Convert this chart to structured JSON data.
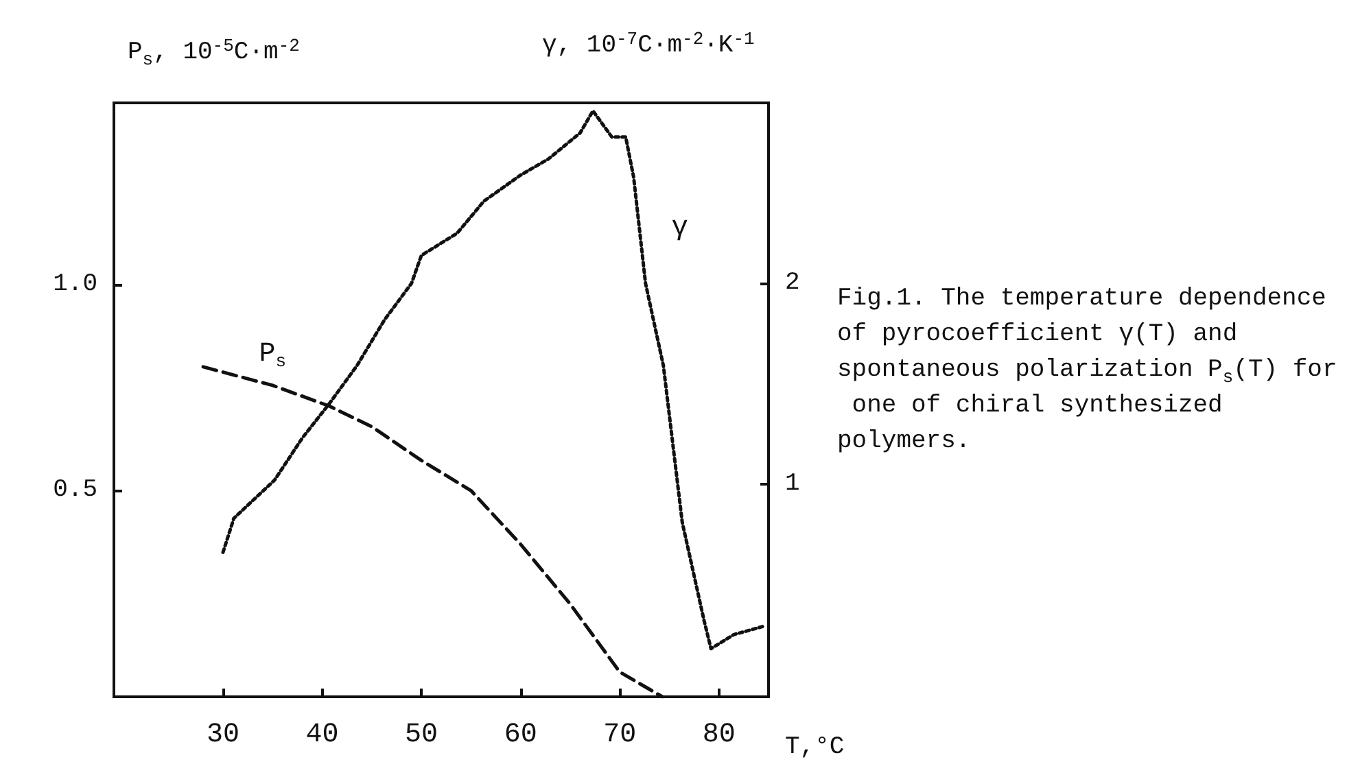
{
  "chart_data": {
    "type": "line",
    "ylabel": "P$_{s}$, 10$^{-5}$C·m$^{-2}$",
    "y2label": "γ, 10$^{-7}$C·m$^{-2}$·K$^{-1}$",
    "xlabel": "T,°C",
    "xlim": [
      19,
      85
    ],
    "xticks": [
      30,
      40,
      50,
      60,
      70,
      80
    ],
    "ylim": [
      0,
      1.44
    ],
    "yticks": [
      0.5,
      {
        "value": 1,
        "label": "1.0"
      }
    ],
    "y2lim": [
      -0.06,
      2.9
    ],
    "y2ticks": [
      1,
      2
    ],
    "grid": false,
    "marker": "none",
    "series": [
      {
        "name": "P$_{s}$",
        "color": "#111111",
        "line_style": "dashed",
        "x": [
          28,
          35,
          40.7,
          45,
          50,
          55,
          60,
          65,
          70,
          74.3
        ],
        "values": [
          0.8,
          0.755,
          0.705,
          0.655,
          0.573,
          0.5,
          0.37,
          0.225,
          0.06,
          0
        ]
      },
      {
        "name": "γ",
        "color": "#111111",
        "line_style": "dotted",
        "axis": "y2",
        "x": [
          30,
          31.1,
          35.2,
          38,
          40.7,
          43.5,
          46.3,
          49,
          50,
          53.6,
          56.3,
          60,
          62.8,
          66,
          67.3,
          69.2,
          70.6,
          71.4,
          72.6,
          74.4,
          76.3,
          78.5,
          79.2,
          81.5,
          84.4
        ],
        "values": [
          0.66,
          0.83,
          1.02,
          1.23,
          1.4,
          1.59,
          1.82,
          2.0,
          2.14,
          2.25,
          2.41,
          2.54,
          2.62,
          2.75,
          2.86,
          2.73,
          2.73,
          2.53,
          2.0,
          1.59,
          0.81,
          0.32,
          0.18,
          0.25,
          0.29
        ]
      }
    ],
    "annotations": [
      "Fig.1. The temperature dependence of pyrocoefficient γ(T) and spontaneous polarization P$_{s}$(T) for one of chiral synthesized polymers."
    ]
  }
}
